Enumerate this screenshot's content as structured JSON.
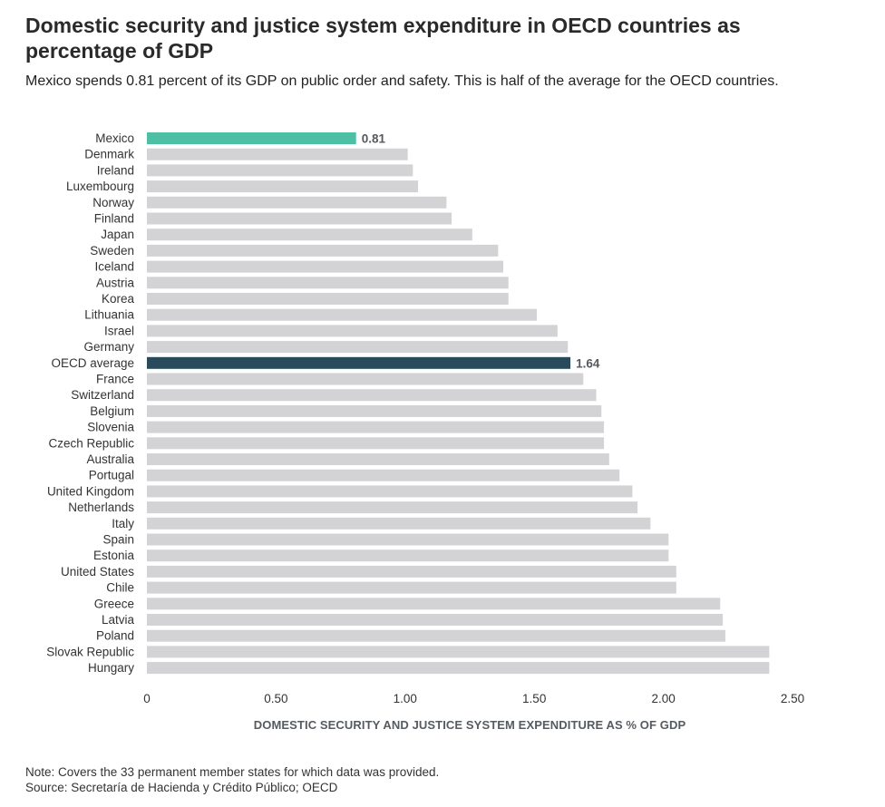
{
  "title": "Domestic security and justice system expenditure in OECD countries as percentage of GDP",
  "subtitle": "Mexico spends 0.81 percent of its GDP on public order and safety. This is half of the average for the OECD countries.",
  "note": "Note: Covers the 33 permanent member states for which data was provided.",
  "source": "Source: Secretaría de Hacienda y Crédito Público; OECD",
  "colors": {
    "bar_default": "#d3d3d6",
    "mexico": "#4dbfa5",
    "oecd_average": "#284a5a",
    "label_text": "#333333",
    "value_label": "#55585d"
  },
  "chart_data": {
    "type": "bar",
    "orientation": "horizontal",
    "title": "Domestic security and justice system expenditure in OECD countries as percentage of GDP",
    "xlabel": "DOMESTIC SECURITY AND JUSTICE SYSTEM EXPENDITURE AS % OF GDP",
    "ylabel": "",
    "xlim": [
      0,
      2.5
    ],
    "xticks": [
      "0",
      "0.50",
      "1.00",
      "1.50",
      "2.00",
      "2.50"
    ],
    "xtick_values": [
      0,
      0.5,
      1.0,
      1.5,
      2.0,
      2.5
    ],
    "grid": false,
    "categories": [
      "Mexico",
      "Denmark",
      "Ireland",
      "Luxembourg",
      "Norway",
      "Finland",
      "Japan",
      "Sweden",
      "Iceland",
      "Austria",
      "Korea",
      "Lithuania",
      "Israel",
      "Germany",
      "OECD average",
      "France",
      "Switzerland",
      "Belgium",
      "Slovenia",
      "Czech Republic",
      "Australia",
      "Portugal",
      "United Kingdom",
      "Netherlands",
      "Italy",
      "Spain",
      "Estonia",
      "United States",
      "Chile",
      "Greece",
      "Latvia",
      "Poland",
      "Slovak Republic",
      "Hungary"
    ],
    "values": [
      0.81,
      1.01,
      1.03,
      1.05,
      1.16,
      1.18,
      1.26,
      1.36,
      1.38,
      1.4,
      1.4,
      1.51,
      1.59,
      1.63,
      1.64,
      1.69,
      1.74,
      1.76,
      1.77,
      1.77,
      1.79,
      1.83,
      1.88,
      1.9,
      1.95,
      2.02,
      2.02,
      2.05,
      2.05,
      2.22,
      2.23,
      2.24,
      2.41,
      2.41
    ],
    "highlights": {
      "Mexico": {
        "color": "mexico",
        "value_label": "0.81"
      },
      "OECD average": {
        "color": "oecd_average",
        "value_label": "1.64"
      }
    }
  }
}
